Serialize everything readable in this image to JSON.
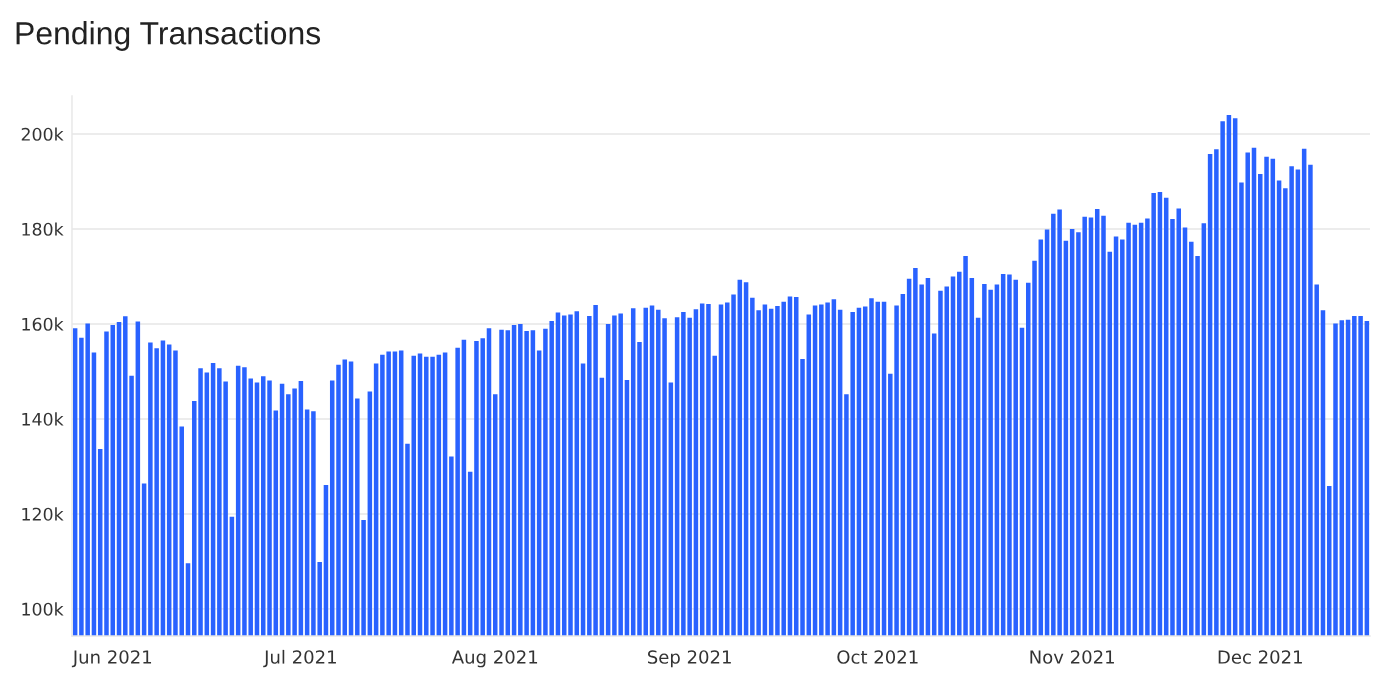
{
  "chart_data": {
    "type": "bar",
    "title": "Pending Transactions",
    "color": "#2962ff",
    "grid": "y",
    "xlim": [
      "2021-05-25T12:00",
      "2021-12-18T12:00"
    ],
    "xticks": [
      {
        "value": "2021-06-01",
        "label": "Jun 2021"
      },
      {
        "value": "2021-07-01",
        "label": "Jul 2021"
      },
      {
        "value": "2021-08-01",
        "label": "Aug 2021"
      },
      {
        "value": "2021-09-01",
        "label": "Sep 2021"
      },
      {
        "value": "2021-10-01",
        "label": "Oct 2021"
      },
      {
        "value": "2021-11-01",
        "label": "Nov 2021"
      },
      {
        "value": "2021-12-01",
        "label": "Dec 2021"
      }
    ],
    "ylim": [
      94300,
      208000
    ],
    "yticks": [
      {
        "value": 100000,
        "label": "100k"
      },
      {
        "value": 120000,
        "label": "120k"
      },
      {
        "value": 140000,
        "label": "140k"
      },
      {
        "value": 160000,
        "label": "160k"
      },
      {
        "value": 180000,
        "label": "180k"
      },
      {
        "value": 200000,
        "label": "200k"
      }
    ],
    "x": [
      "2021-05-26",
      "2021-05-27",
      "2021-05-28",
      "2021-05-29",
      "2021-05-30",
      "2021-05-31",
      "2021-06-01",
      "2021-06-02",
      "2021-06-03",
      "2021-06-04",
      "2021-06-05",
      "2021-06-06",
      "2021-06-07",
      "2021-06-08",
      "2021-06-09",
      "2021-06-10",
      "2021-06-11",
      "2021-06-12",
      "2021-06-13",
      "2021-06-14",
      "2021-06-15",
      "2021-06-16",
      "2021-06-17",
      "2021-06-18",
      "2021-06-19",
      "2021-06-20",
      "2021-06-21",
      "2021-06-22",
      "2021-06-23",
      "2021-06-24",
      "2021-06-25",
      "2021-06-26",
      "2021-06-27",
      "2021-06-28",
      "2021-06-29",
      "2021-06-30",
      "2021-07-01",
      "2021-07-02",
      "2021-07-03",
      "2021-07-04",
      "2021-07-05",
      "2021-07-06",
      "2021-07-07",
      "2021-07-08",
      "2021-07-09",
      "2021-07-10",
      "2021-07-11",
      "2021-07-12",
      "2021-07-13",
      "2021-07-14",
      "2021-07-15",
      "2021-07-16",
      "2021-07-17",
      "2021-07-18",
      "2021-07-19",
      "2021-07-20",
      "2021-07-21",
      "2021-07-22",
      "2021-07-23",
      "2021-07-24",
      "2021-07-25",
      "2021-07-26",
      "2021-07-27",
      "2021-07-28",
      "2021-07-29",
      "2021-07-30",
      "2021-07-31",
      "2021-08-01",
      "2021-08-02",
      "2021-08-03",
      "2021-08-04",
      "2021-08-05",
      "2021-08-06",
      "2021-08-07",
      "2021-08-08",
      "2021-08-09",
      "2021-08-10",
      "2021-08-11",
      "2021-08-12",
      "2021-08-13",
      "2021-08-14",
      "2021-08-15",
      "2021-08-16",
      "2021-08-17",
      "2021-08-18",
      "2021-08-19",
      "2021-08-20",
      "2021-08-21",
      "2021-08-22",
      "2021-08-23",
      "2021-08-24",
      "2021-08-25",
      "2021-08-26",
      "2021-08-27",
      "2021-08-28",
      "2021-08-29",
      "2021-08-30",
      "2021-08-31",
      "2021-09-01",
      "2021-09-02",
      "2021-09-03",
      "2021-09-04",
      "2021-09-05",
      "2021-09-06",
      "2021-09-07",
      "2021-09-08",
      "2021-09-09",
      "2021-09-10",
      "2021-09-11",
      "2021-09-12",
      "2021-09-13",
      "2021-09-14",
      "2021-09-15",
      "2021-09-16",
      "2021-09-17",
      "2021-09-18",
      "2021-09-19",
      "2021-09-20",
      "2021-09-21",
      "2021-09-22",
      "2021-09-23",
      "2021-09-24",
      "2021-09-25",
      "2021-09-26",
      "2021-09-27",
      "2021-09-28",
      "2021-09-29",
      "2021-09-30",
      "2021-10-01",
      "2021-10-02",
      "2021-10-03",
      "2021-10-04",
      "2021-10-05",
      "2021-10-06",
      "2021-10-07",
      "2021-10-08",
      "2021-10-09",
      "2021-10-10",
      "2021-10-11",
      "2021-10-12",
      "2021-10-13",
      "2021-10-14",
      "2021-10-15",
      "2021-10-16",
      "2021-10-17",
      "2021-10-18",
      "2021-10-19",
      "2021-10-20",
      "2021-10-21",
      "2021-10-22",
      "2021-10-23",
      "2021-10-24",
      "2021-10-25",
      "2021-10-26",
      "2021-10-27",
      "2021-10-28",
      "2021-10-29",
      "2021-10-30",
      "2021-10-31",
      "2021-11-01",
      "2021-11-02",
      "2021-11-03",
      "2021-11-04",
      "2021-11-05",
      "2021-11-06",
      "2021-11-07",
      "2021-11-08",
      "2021-11-09",
      "2021-11-10",
      "2021-11-11",
      "2021-11-12",
      "2021-11-13",
      "2021-11-14",
      "2021-11-15",
      "2021-11-16",
      "2021-11-17",
      "2021-11-18",
      "2021-11-19",
      "2021-11-20",
      "2021-11-21",
      "2021-11-22",
      "2021-11-23",
      "2021-11-24",
      "2021-11-25",
      "2021-11-26",
      "2021-11-27",
      "2021-11-28",
      "2021-11-29",
      "2021-11-30",
      "2021-12-01",
      "2021-12-02",
      "2021-12-03",
      "2021-12-04",
      "2021-12-05",
      "2021-12-06",
      "2021-12-07",
      "2021-12-08",
      "2021-12-09",
      "2021-12-10",
      "2021-12-11",
      "2021-12-12",
      "2021-12-13",
      "2021-12-14",
      "2021-12-15",
      "2021-12-16",
      "2021-12-17",
      "2021-12-18"
    ],
    "values": [
      159100,
      157100,
      160100,
      154000,
      133700,
      158400,
      159800,
      160400,
      161600,
      149100,
      160500,
      126400,
      156100,
      154900,
      156500,
      155700,
      154400,
      138400,
      109600,
      143800,
      150700,
      149800,
      151800,
      150700,
      147900,
      119400,
      151200,
      150900,
      148500,
      147700,
      149000,
      148100,
      141800,
      147400,
      145200,
      146400,
      148000,
      142000,
      141600,
      109900,
      126100,
      148100,
      151400,
      152500,
      152100,
      144300,
      118700,
      145800,
      151700,
      153500,
      154200,
      154200,
      154400,
      134800,
      153300,
      153800,
      153100,
      153100,
      153500,
      154000,
      132100,
      155000,
      156700,
      128900,
      156400,
      157000,
      159100,
      145200,
      158800,
      158700,
      159800,
      160000,
      158500,
      158700,
      154400,
      159000,
      160600,
      162400,
      161800,
      162000,
      162700,
      151700,
      161700,
      164000,
      148700,
      160000,
      161800,
      162200,
      148200,
      163300,
      156200,
      163400,
      163900,
      163000,
      161200,
      147700,
      161400,
      162500,
      161300,
      163100,
      164300,
      164200,
      153300,
      164100,
      164500,
      166200,
      169300,
      168800,
      165500,
      162900,
      164100,
      163200,
      163800,
      164700,
      165800,
      165700,
      152600,
      162000,
      163900,
      164100,
      164500,
      165200,
      163000,
      145200,
      162500,
      163400,
      163700,
      165400,
      164700,
      164700,
      149500,
      163900,
      166300,
      169500,
      171800,
      168300,
      169700,
      158000,
      167000,
      167900,
      170000,
      171000,
      174300,
      169700,
      161300,
      168400,
      167200,
      168300,
      170500,
      170400,
      169300,
      159200,
      168700,
      173300,
      177800,
      179900,
      183200,
      184100,
      177500,
      180000,
      179300,
      182600,
      182400,
      184200,
      182800,
      175200,
      178400,
      177800,
      181300,
      180900,
      181300,
      182200,
      187600,
      187800,
      186600,
      182100,
      184300,
      180300,
      177300,
      174300,
      181200,
      195800,
      196800,
      202700,
      204000,
      203300,
      189800,
      196100,
      197100,
      191600,
      195200,
      194800,
      190200,
      188600,
      193200,
      192500,
      196900,
      193500,
      168300,
      162900,
      125900,
      160100,
      160800,
      160900,
      161700,
      161700,
      160600
    ]
  }
}
